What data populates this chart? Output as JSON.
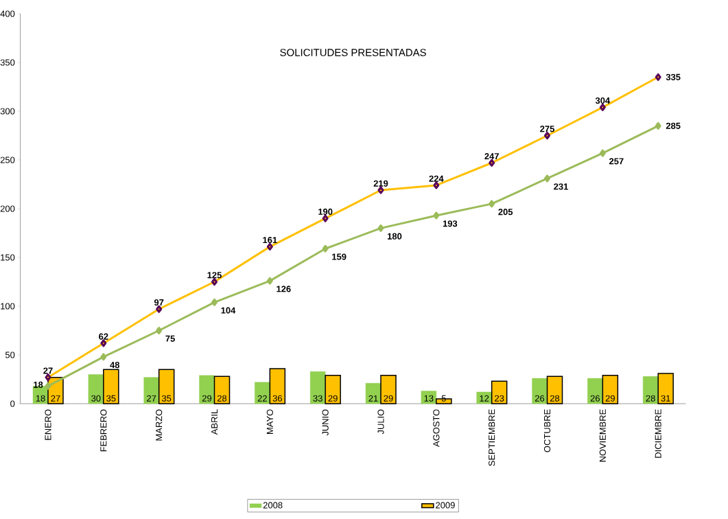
{
  "chart_data": {
    "type": "bar",
    "title": "SOLICITUDES PRESENTADAS",
    "categories": [
      "ENERO",
      "FEBRERO",
      "MARZO",
      "ABRIL",
      "MAYO",
      "JUNIO",
      "JULIO",
      "AGOSTO",
      "SEPTIEMBRE",
      "OCTUBRE",
      "NOVIEMBRE",
      "DICIEMBRE"
    ],
    "series": [
      {
        "name": "2008",
        "color": "#92d050",
        "values": [
          18,
          30,
          27,
          29,
          22,
          33,
          21,
          13,
          12,
          26,
          26,
          28
        ]
      },
      {
        "name": "2009",
        "color": "#ffc000",
        "values": [
          27,
          35,
          35,
          28,
          36,
          29,
          29,
          5,
          23,
          28,
          29,
          31
        ]
      },
      {
        "type": "line",
        "color": "#9bbb59",
        "marker": "diamond",
        "values": [
          18,
          48,
          75,
          104,
          126,
          159,
          180,
          193,
          205,
          231,
          257,
          285
        ]
      },
      {
        "type": "line",
        "color": "#ffc000",
        "marker": "diamond",
        "values": [
          27,
          62,
          97,
          125,
          161,
          190,
          219,
          224,
          247,
          275,
          304,
          335
        ]
      }
    ],
    "ylim": [
      0,
      400
    ],
    "yticks": [
      0,
      50,
      100,
      150,
      200,
      250,
      300,
      350,
      400
    ],
    "data_labels": true,
    "legend": "bottom",
    "grid": false
  }
}
